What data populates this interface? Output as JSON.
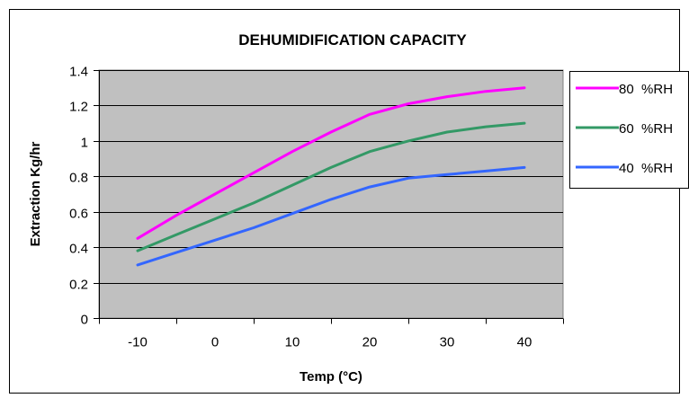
{
  "chart_data": {
    "type": "line",
    "title": "DEHUMIDIFICATION CAPACITY",
    "xlabel": "Temp (°C)",
    "ylabel": "Extraction Kg/hr",
    "x": [
      -10,
      -5,
      0,
      5,
      10,
      15,
      20,
      25,
      30,
      35,
      40
    ],
    "xlim": [
      -15,
      45
    ],
    "ylim": [
      0,
      1.4
    ],
    "x_ticks": [
      -10,
      0,
      10,
      20,
      30,
      40
    ],
    "y_ticks": [
      0,
      0.2,
      0.4,
      0.6,
      0.8,
      1,
      1.2,
      1.4
    ],
    "x_tick_labels": [
      "-10",
      "0",
      "10",
      "20",
      "30",
      "40"
    ],
    "y_tick_labels": [
      "0",
      "0.2",
      "0.4",
      "0.6",
      "0.8",
      "1",
      "1.2",
      "1.4"
    ],
    "grid": "horizontal",
    "legend_position": "right",
    "plot_background": "#c0c0c0",
    "series": [
      {
        "name": "80  %RH",
        "color": "#ff00ff",
        "values": [
          0.45,
          0.58,
          0.7,
          0.82,
          0.94,
          1.05,
          1.15,
          1.21,
          1.25,
          1.28,
          1.3
        ]
      },
      {
        "name": "60  %RH",
        "color": "#339966",
        "values": [
          0.38,
          0.47,
          0.56,
          0.65,
          0.75,
          0.85,
          0.94,
          1.0,
          1.05,
          1.08,
          1.1
        ]
      },
      {
        "name": "40  %RH",
        "color": "#3366ff",
        "values": [
          0.3,
          0.37,
          0.44,
          0.51,
          0.59,
          0.67,
          0.74,
          0.79,
          0.81,
          0.83,
          0.85
        ]
      }
    ]
  }
}
